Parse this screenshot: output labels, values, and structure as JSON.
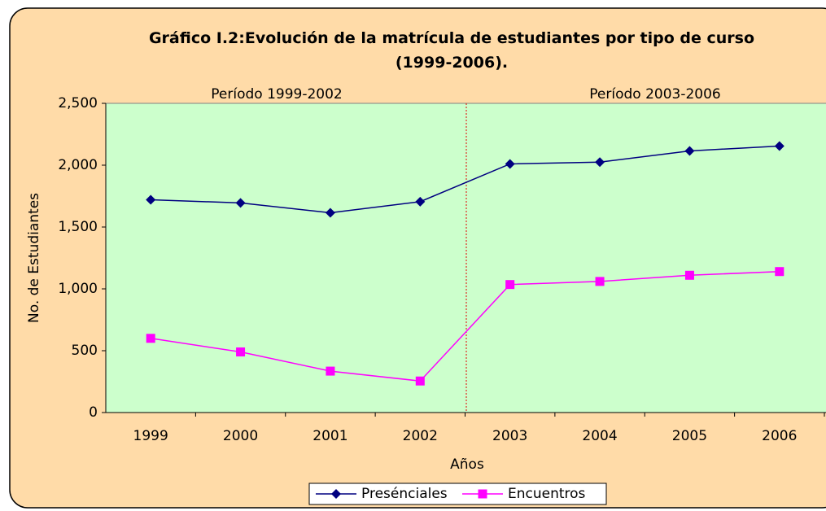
{
  "chart_data": {
    "type": "line",
    "title": "Gráfico I.2:Evolución de la matrícula de estudiantes por tipo de curso (1999-2006).",
    "x_label": "Años",
    "y_label": "No. de Estudiantes",
    "annotations": [
      "Período 1999-2002",
      "Período 2003-2006"
    ],
    "categories": [
      "1999",
      "2000",
      "2001",
      "2002",
      "2003",
      "2004",
      "2005",
      "2006"
    ],
    "series": [
      {
        "name": "Presénciales",
        "color": "#000080",
        "marker": "diamond",
        "values": [
          1720,
          1695,
          1615,
          1705,
          2010,
          2025,
          2115,
          2155
        ]
      },
      {
        "name": "Encuentros",
        "color": "#ff00ff",
        "marker": "square",
        "values": [
          600,
          490,
          335,
          255,
          1035,
          1060,
          1110,
          1140
        ]
      }
    ],
    "ylim": [
      0,
      2500
    ],
    "yticks": [
      0,
      500,
      {
        "value": 1000,
        "label": "1,000"
      },
      {
        "value": 1500,
        "label": "1,500"
      },
      {
        "value": 2000,
        "label": "2,000"
      },
      {
        "value": 2500,
        "label": "2,500"
      }
    ],
    "legend": "bottom"
  }
}
